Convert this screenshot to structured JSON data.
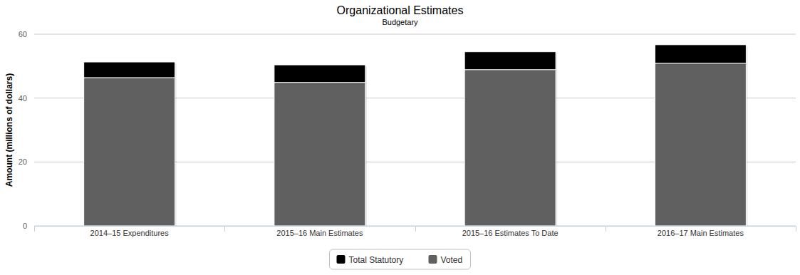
{
  "chart_data": {
    "type": "bar",
    "title": "Organizational Estimates",
    "subtitle": "Budgetary",
    "y_label": "Amount (millions of dollars)",
    "categories": [
      "2014–15 Expenditures",
      "2015–16 Main Estimates",
      "2015–16 Estimates To Date",
      "2016–17 Main Estimates"
    ],
    "series": [
      {
        "name": "Total Statutory",
        "color": "#000000",
        "values": [
          4.9,
          5.5,
          5.6,
          5.8
        ]
      },
      {
        "name": "Voted",
        "color": "#606060",
        "values": [
          46.4,
          44.9,
          48.9,
          50.9
        ]
      }
    ],
    "stacked": true,
    "ylim": [
      0,
      60
    ],
    "yticks": [
      0,
      20,
      40,
      60
    ],
    "grid": true,
    "legend": "bottom"
  }
}
